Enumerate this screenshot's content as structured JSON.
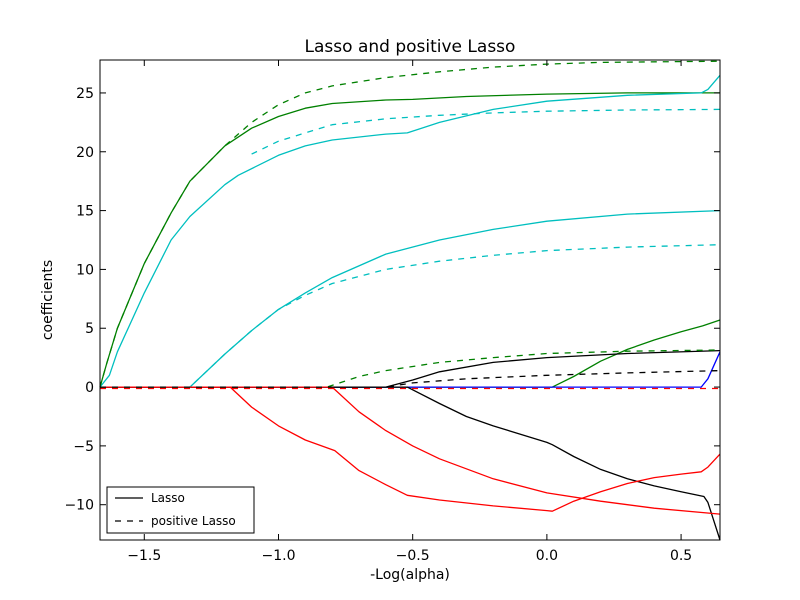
{
  "chart_data": {
    "type": "line",
    "title": "Lasso and positive Lasso",
    "xlabel": "-Log(alpha)",
    "ylabel": "coefficients",
    "xlim": [
      -1.665,
      0.645
    ],
    "ylim": [
      -13,
      27.8
    ],
    "xticks": [
      -1.5,
      -1.0,
      -0.5,
      0.0,
      0.5
    ],
    "xtick_labels": [
      "−1.5",
      "−1.0",
      "−0.5",
      "0.0",
      "0.5"
    ],
    "yticks": [
      -10,
      -5,
      0,
      5,
      10,
      15,
      20,
      25
    ],
    "ytick_labels": [
      "−10",
      "−5",
      "0",
      "5",
      "10",
      "15",
      "20",
      "25"
    ],
    "grid": false,
    "legend": {
      "placement": "lower-left",
      "entries": [
        {
          "label": "Lasso",
          "style": "solid"
        },
        {
          "label": "positive Lasso",
          "style": "dashed"
        }
      ]
    },
    "series": [
      {
        "style": "solid",
        "color": "#008000",
        "points": [
          [
            -1.665,
            0
          ],
          [
            -1.64,
            2
          ],
          [
            -1.6,
            5
          ],
          [
            -1.5,
            10.5
          ],
          [
            -1.4,
            14.8
          ],
          [
            -1.33,
            17.5
          ],
          [
            -1.2,
            20.5
          ],
          [
            -1.1,
            22
          ],
          [
            -1.0,
            23
          ],
          [
            -0.9,
            23.7
          ],
          [
            -0.8,
            24.1
          ],
          [
            -0.6,
            24.4
          ],
          [
            -0.5,
            24.45
          ],
          [
            -0.3,
            24.7
          ],
          [
            0.0,
            24.9
          ],
          [
            0.3,
            25.0
          ],
          [
            0.645,
            25.0
          ]
        ]
      },
      {
        "style": "solid",
        "color": "#00bfbf",
        "points": [
          [
            -1.665,
            0
          ],
          [
            -1.63,
            1
          ],
          [
            -1.6,
            3
          ],
          [
            -1.5,
            8
          ],
          [
            -1.4,
            12.5
          ],
          [
            -1.33,
            14.5
          ],
          [
            -1.2,
            17.2
          ],
          [
            -1.15,
            18
          ],
          [
            -1.0,
            19.7
          ],
          [
            -0.9,
            20.5
          ],
          [
            -0.8,
            21
          ],
          [
            -0.6,
            21.5
          ],
          [
            -0.52,
            21.6
          ],
          [
            -0.4,
            22.5
          ],
          [
            -0.2,
            23.6
          ],
          [
            0.0,
            24.3
          ],
          [
            0.3,
            24.8
          ],
          [
            0.575,
            25.0
          ],
          [
            0.6,
            25.3
          ],
          [
            0.645,
            26.5
          ]
        ]
      },
      {
        "style": "solid",
        "color": "#00bfbf",
        "points": [
          [
            -1.665,
            0
          ],
          [
            -1.33,
            0
          ],
          [
            -1.2,
            2.8
          ],
          [
            -1.1,
            4.8
          ],
          [
            -1.0,
            6.6
          ],
          [
            -0.9,
            8
          ],
          [
            -0.8,
            9.3
          ],
          [
            -0.6,
            11.3
          ],
          [
            -0.4,
            12.5
          ],
          [
            -0.2,
            13.4
          ],
          [
            0.0,
            14.1
          ],
          [
            0.3,
            14.7
          ],
          [
            0.645,
            15.0
          ]
        ]
      },
      {
        "style": "solid",
        "color": "#008000",
        "points": [
          [
            -1.665,
            0
          ],
          [
            0.02,
            0
          ],
          [
            0.1,
            0.9
          ],
          [
            0.2,
            2.2
          ],
          [
            0.3,
            3.2
          ],
          [
            0.4,
            4
          ],
          [
            0.5,
            4.7
          ],
          [
            0.58,
            5.2
          ],
          [
            0.645,
            5.7
          ]
        ]
      },
      {
        "style": "solid",
        "color": "#000000",
        "points": [
          [
            -1.665,
            0
          ],
          [
            -0.6,
            0
          ],
          [
            -0.5,
            0.6
          ],
          [
            -0.4,
            1.3
          ],
          [
            -0.2,
            2.1
          ],
          [
            0.0,
            2.5
          ],
          [
            0.3,
            2.85
          ],
          [
            0.645,
            3.1
          ]
        ]
      },
      {
        "style": "solid",
        "color": "#0000ff",
        "points": [
          [
            -1.665,
            0
          ],
          [
            0.575,
            0
          ],
          [
            0.6,
            0.7
          ],
          [
            0.645,
            3.0
          ]
        ]
      },
      {
        "style": "solid",
        "color": "#000000",
        "points": [
          [
            -1.665,
            0
          ],
          [
            -0.52,
            0
          ],
          [
            -0.4,
            -1.4
          ],
          [
            -0.3,
            -2.5
          ],
          [
            -0.2,
            -3.3
          ],
          [
            -0.1,
            -4
          ],
          [
            0.0,
            -4.7
          ],
          [
            0.02,
            -4.9
          ],
          [
            0.1,
            -5.9
          ],
          [
            0.2,
            -7
          ],
          [
            0.3,
            -7.8
          ],
          [
            0.4,
            -8.4
          ],
          [
            0.5,
            -8.9
          ],
          [
            0.585,
            -9.3
          ],
          [
            0.6,
            -9.8
          ],
          [
            0.645,
            -13
          ]
        ]
      },
      {
        "style": "solid",
        "color": "#ff0000",
        "points": [
          [
            -1.665,
            0
          ],
          [
            -1.18,
            0
          ],
          [
            -1.1,
            -1.7
          ],
          [
            -1.0,
            -3.3
          ],
          [
            -0.9,
            -4.5
          ],
          [
            -0.79,
            -5.4
          ],
          [
            -0.7,
            -7.1
          ],
          [
            -0.6,
            -8.3
          ],
          [
            -0.52,
            -9.2
          ],
          [
            -0.4,
            -9.6
          ],
          [
            -0.2,
            -10.1
          ],
          [
            0.0,
            -10.5
          ],
          [
            0.02,
            -10.55
          ],
          [
            0.1,
            -9.7
          ],
          [
            0.2,
            -8.9
          ],
          [
            0.3,
            -8.2
          ],
          [
            0.4,
            -7.7
          ],
          [
            0.5,
            -7.4
          ],
          [
            0.575,
            -7.2
          ],
          [
            0.6,
            -6.8
          ],
          [
            0.645,
            -5.7
          ]
        ]
      },
      {
        "style": "solid",
        "color": "#ff0000",
        "points": [
          [
            -1.665,
            0
          ],
          [
            -0.8,
            0
          ],
          [
            -0.7,
            -2.1
          ],
          [
            -0.6,
            -3.7
          ],
          [
            -0.5,
            -5
          ],
          [
            -0.4,
            -6.1
          ],
          [
            -0.2,
            -7.8
          ],
          [
            0.0,
            -9
          ],
          [
            0.2,
            -9.7
          ],
          [
            0.4,
            -10.3
          ],
          [
            0.645,
            -10.8
          ]
        ]
      },
      {
        "style": "dashed",
        "color": "#008000",
        "points": [
          [
            -1.665,
            0
          ],
          [
            -1.64,
            2
          ],
          [
            -1.6,
            5
          ],
          [
            -1.5,
            10.5
          ],
          [
            -1.4,
            14.8
          ],
          [
            -1.33,
            17.5
          ],
          [
            -1.2,
            20.5
          ],
          [
            -1.1,
            22.5
          ],
          [
            -1.0,
            24
          ],
          [
            -0.9,
            25
          ],
          [
            -0.8,
            25.6
          ],
          [
            -0.6,
            26.3
          ],
          [
            -0.4,
            26.8
          ],
          [
            -0.2,
            27.2
          ],
          [
            0.0,
            27.45
          ],
          [
            0.2,
            27.6
          ],
          [
            0.645,
            27.7
          ]
        ]
      },
      {
        "style": "dashed",
        "color": "#00bfbf",
        "points": [
          [
            -1.1,
            19.8
          ],
          [
            -1.0,
            20.9
          ],
          [
            -0.9,
            21.6
          ],
          [
            -0.8,
            22.3
          ],
          [
            -0.6,
            22.8
          ],
          [
            -0.4,
            23.1
          ],
          [
            -0.2,
            23.3
          ],
          [
            0.0,
            23.45
          ],
          [
            0.3,
            23.55
          ],
          [
            0.645,
            23.6
          ]
        ]
      },
      {
        "style": "dashed",
        "color": "#00bfbf",
        "points": [
          [
            -1.665,
            0
          ],
          [
            -1.33,
            0
          ],
          [
            -1.2,
            2.8
          ],
          [
            -1.1,
            4.8
          ],
          [
            -1.0,
            6.6
          ],
          [
            -0.9,
            7.8
          ],
          [
            -0.8,
            8.8
          ],
          [
            -0.6,
            10
          ],
          [
            -0.4,
            10.7
          ],
          [
            -0.2,
            11.2
          ],
          [
            0.0,
            11.6
          ],
          [
            0.3,
            11.9
          ],
          [
            0.645,
            12.1
          ]
        ]
      },
      {
        "style": "dashed",
        "color": "#008000",
        "points": [
          [
            -1.665,
            0
          ],
          [
            -0.82,
            0
          ],
          [
            -0.7,
            0.9
          ],
          [
            -0.6,
            1.4
          ],
          [
            -0.4,
            2.1
          ],
          [
            -0.2,
            2.5
          ],
          [
            0.0,
            2.85
          ],
          [
            0.3,
            3.05
          ],
          [
            0.645,
            3.15
          ]
        ]
      },
      {
        "style": "dashed",
        "color": "#000000",
        "points": [
          [
            -1.665,
            0
          ],
          [
            -0.6,
            0
          ],
          [
            -0.5,
            0.35
          ],
          [
            -0.3,
            0.7
          ],
          [
            0.0,
            1.0
          ],
          [
            0.3,
            1.2
          ],
          [
            0.645,
            1.4
          ]
        ]
      },
      {
        "style": "dashed",
        "color": "#ff0000",
        "points": [
          [
            -1.665,
            -0.12
          ],
          [
            0.645,
            -0.12
          ]
        ]
      }
    ]
  }
}
